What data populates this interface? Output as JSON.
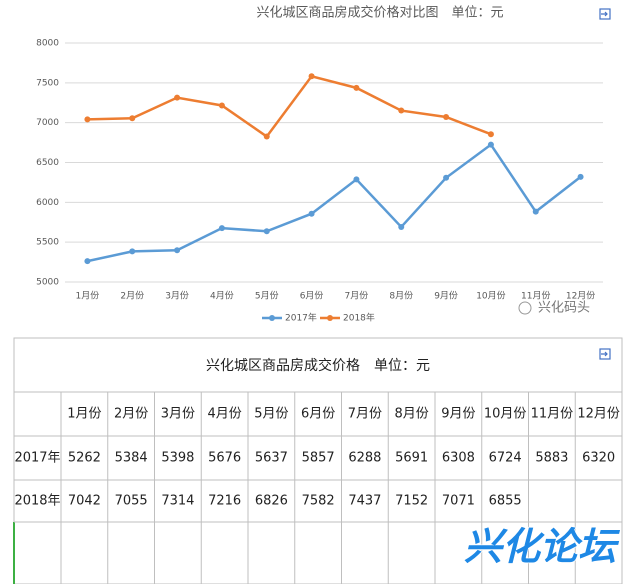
{
  "chart_data": {
    "type": "line",
    "title": "兴化城区商品房成交价格对比图　单位：元",
    "categories": [
      "1月份",
      "2月份",
      "3月份",
      "4月份",
      "5月份",
      "6月份",
      "7月份",
      "8月份",
      "9月份",
      "10月份",
      "11月份",
      "12月份"
    ],
    "series": [
      {
        "name": "2017年",
        "color": "#5b9bd5",
        "values": [
          5262,
          5384,
          5398,
          5676,
          5637,
          5857,
          6288,
          5691,
          6308,
          6724,
          5883,
          6320
        ]
      },
      {
        "name": "2018年",
        "color": "#ed7d31",
        "values": [
          7042,
          7055,
          7314,
          7216,
          6826,
          7582,
          7437,
          7152,
          7071,
          6855,
          null,
          null
        ]
      }
    ],
    "ylim": [
      5000,
      8000
    ],
    "yticks": [
      5000,
      5500,
      6000,
      6500,
      7000,
      7500,
      8000
    ],
    "grid": true,
    "legend": "bottom"
  },
  "table": {
    "title": "兴化城区商品房成交价格　单位：元"
  },
  "watermarks": [
    "兴化码头",
    "兴化论坛"
  ]
}
